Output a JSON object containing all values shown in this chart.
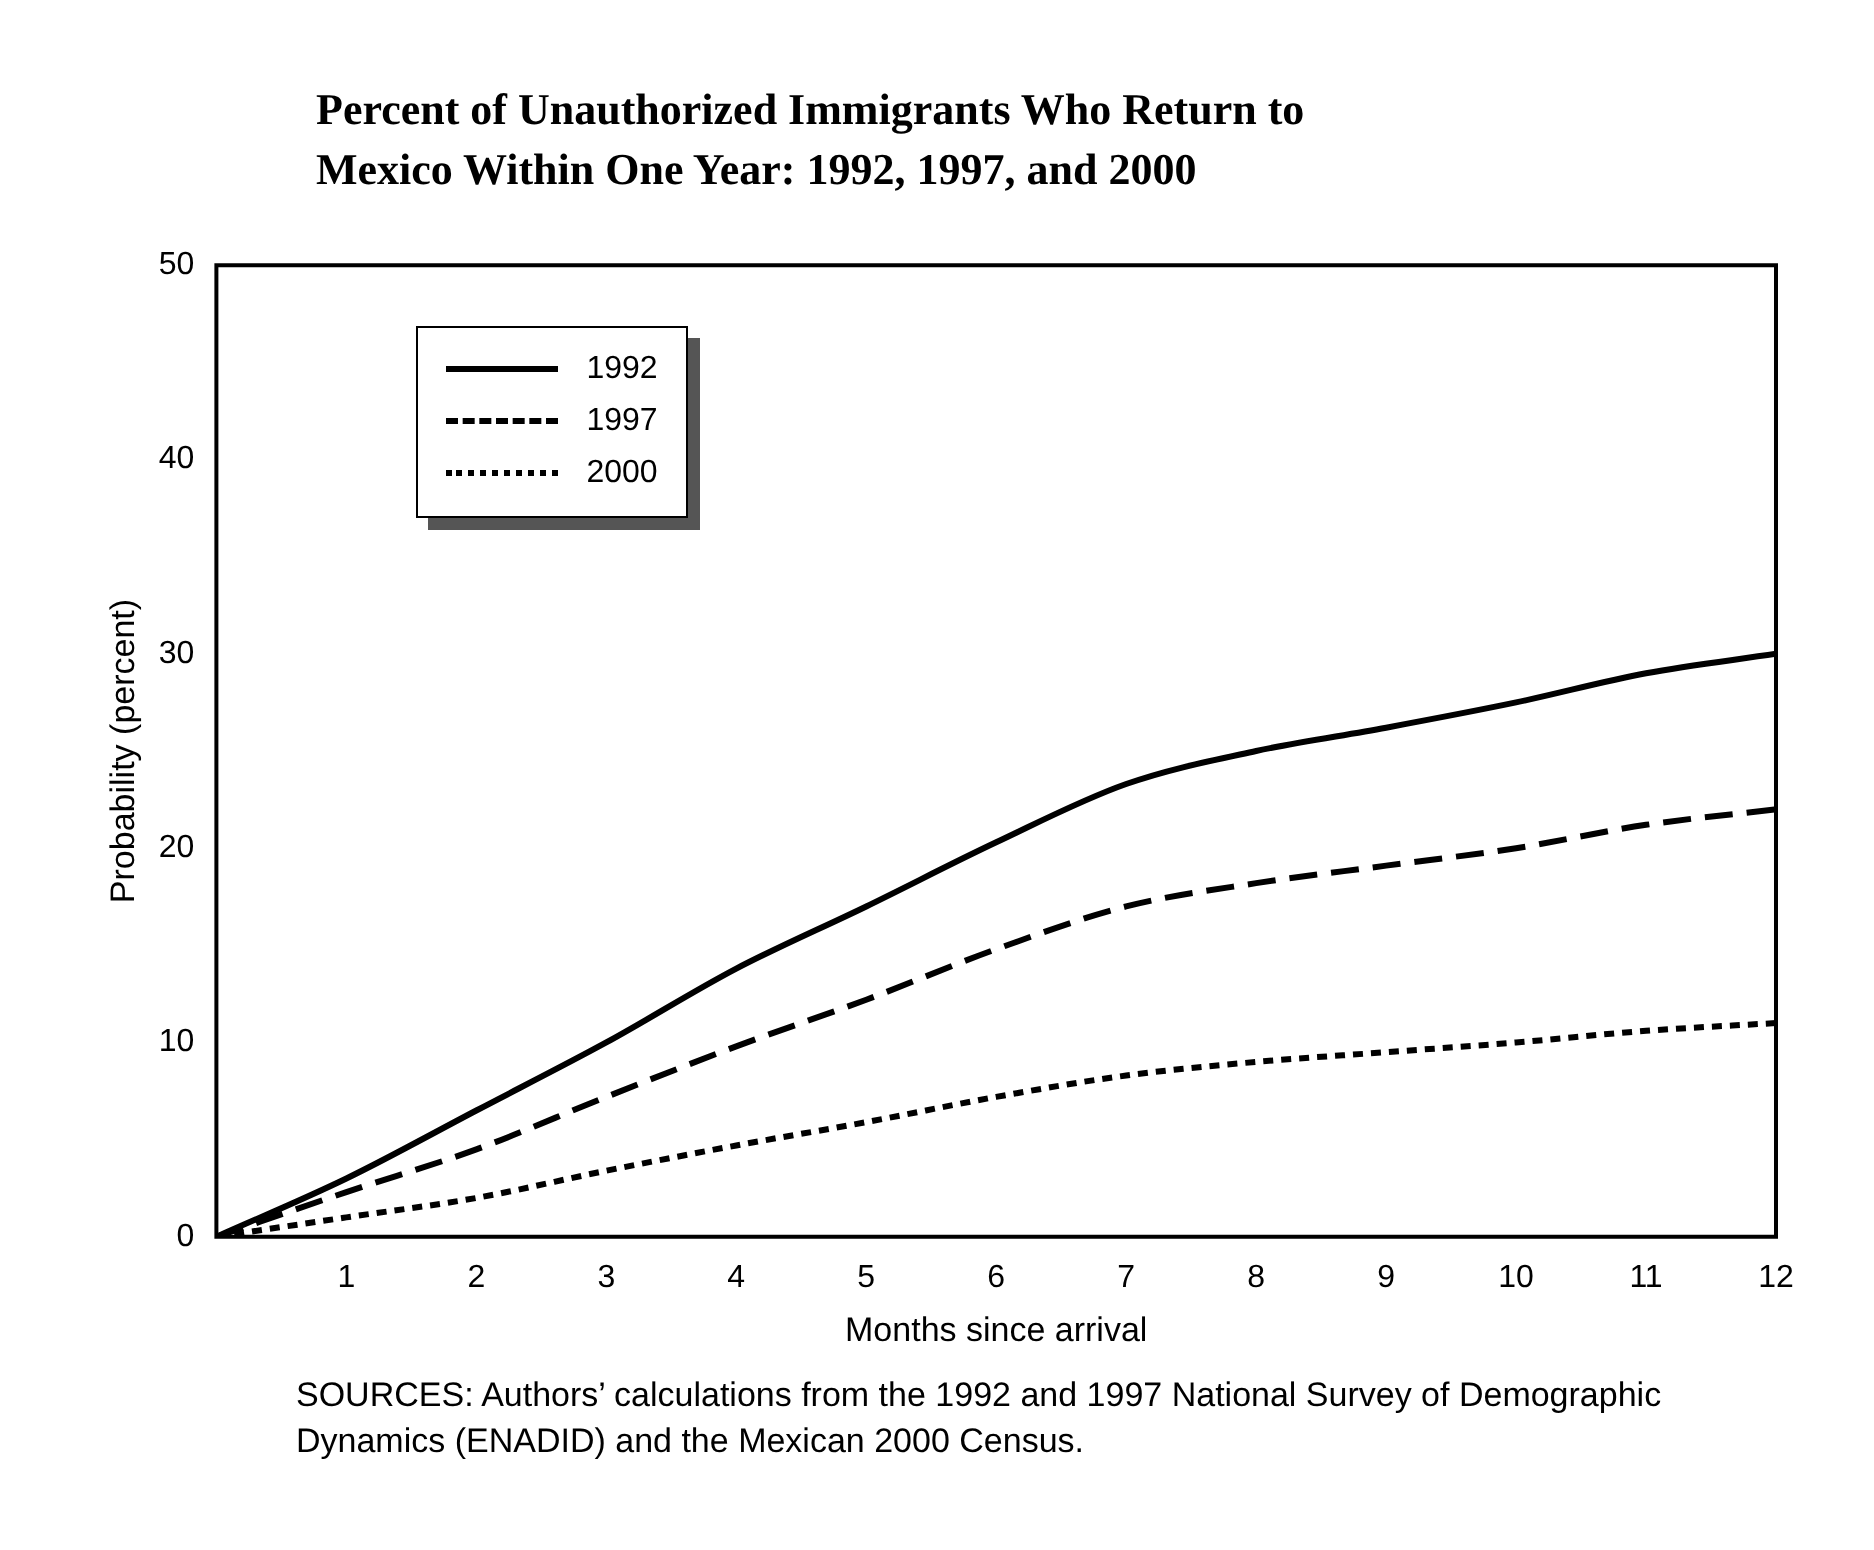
{
  "chart_data": {
    "type": "line",
    "title": "Percent of Unauthorized Immigrants Who Return to Mexico Within One Year: 1992, 1997, and 2000",
    "xlabel": "Months since arrival",
    "ylabel": "Probability (percent)",
    "x": [
      0,
      1,
      2,
      3,
      4,
      5,
      6,
      7,
      8,
      9,
      10,
      11,
      12
    ],
    "series": [
      {
        "name": "1992",
        "color": "#000000",
        "line_style": "solid",
        "values": [
          0,
          3,
          6.5,
          10,
          13.8,
          17,
          20.3,
          23.3,
          25,
          26.2,
          27.5,
          29,
          30
        ]
      },
      {
        "name": "1997",
        "color": "#000000",
        "line_style": "dashed",
        "values": [
          0,
          2.3,
          4.5,
          7.2,
          9.8,
          12.2,
          14.8,
          17,
          18.2,
          19.1,
          20,
          21.2,
          22
        ]
      },
      {
        "name": "2000",
        "color": "#000000",
        "line_style": "dotted",
        "values": [
          0,
          1,
          2,
          3.4,
          4.7,
          5.9,
          7.2,
          8.3,
          9,
          9.5,
          10,
          10.6,
          11
        ]
      }
    ],
    "xlim": [
      0,
      12
    ],
    "xticks": [
      {
        "value": 0,
        "label": null
      },
      1,
      2,
      3,
      4,
      5,
      6,
      7,
      8,
      9,
      10,
      11,
      12
    ],
    "ylim": [
      0,
      50
    ],
    "yticks": [
      0,
      10,
      20,
      30,
      40,
      50
    ],
    "grid": false,
    "legend": "top left",
    "marker": "none",
    "annotations": [
      "SOURCES:  Authors’ calculations from the 1992 and 1997 National Survey of Demographic Dynamics (ENADID) and the Mexican 2000 Census."
    ]
  }
}
